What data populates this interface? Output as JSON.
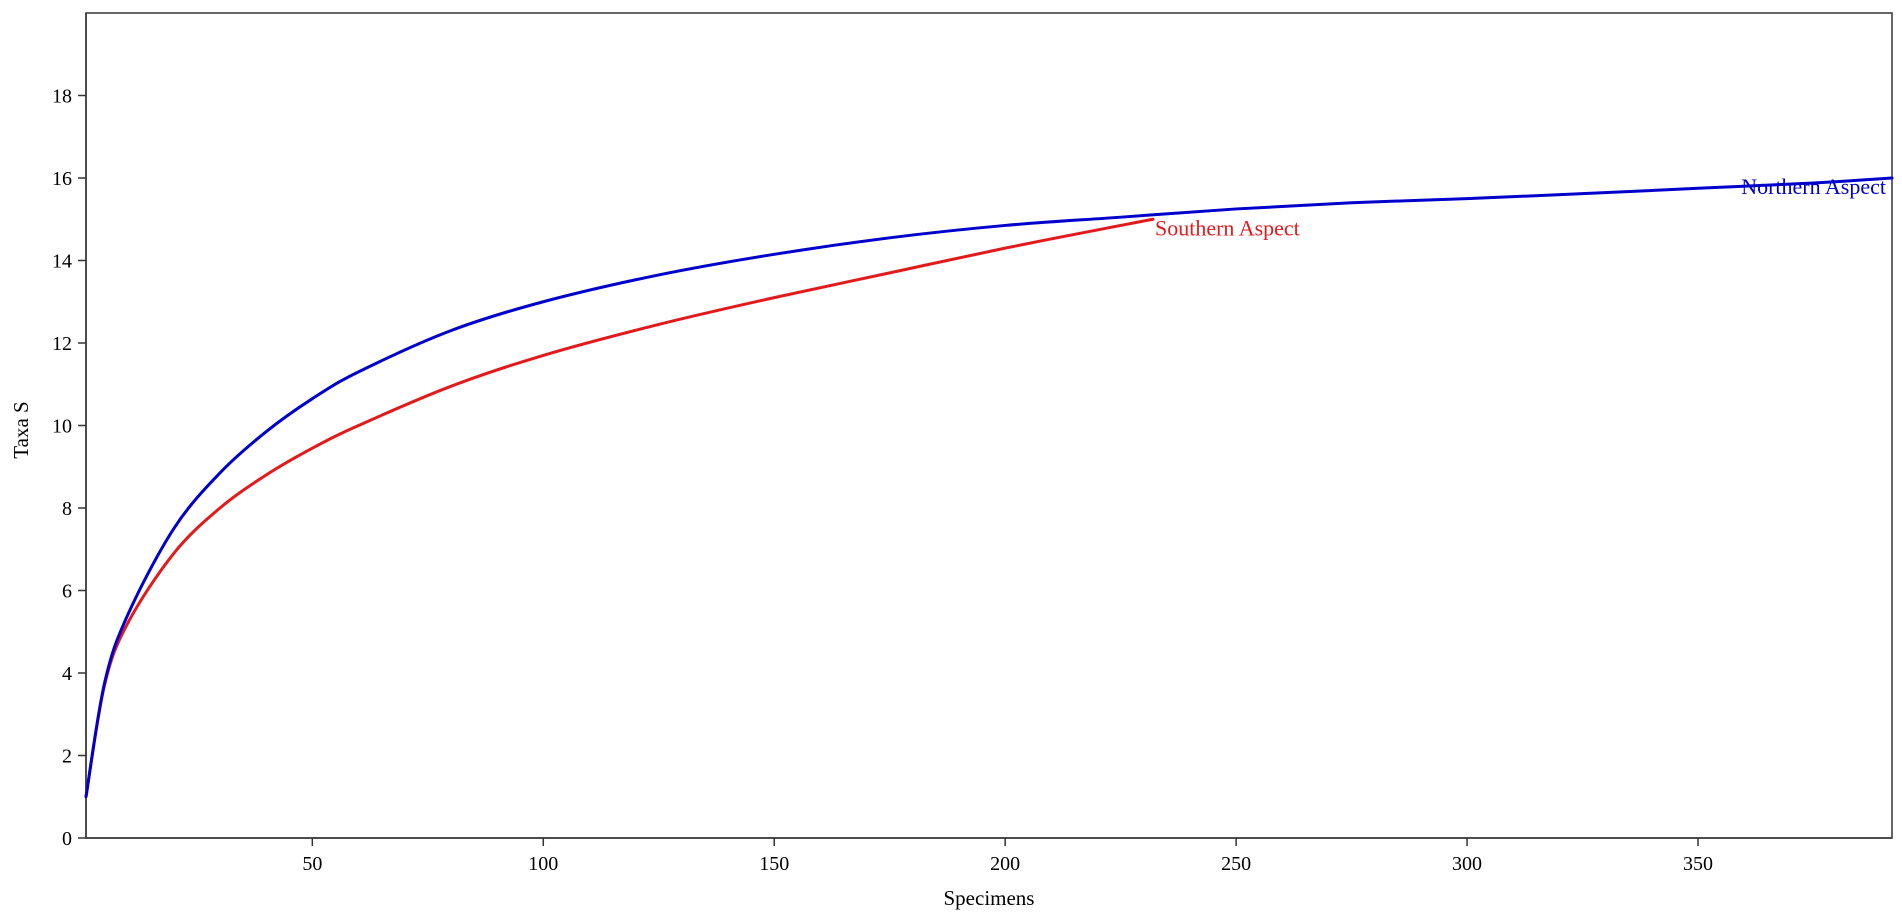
{
  "chart_data": {
    "type": "line",
    "title": "",
    "xlabel": "Specimens",
    "ylabel": "Taxa S",
    "xlim": [
      1,
      392
    ],
    "ylim": [
      0,
      20
    ],
    "x_ticks": [
      50,
      100,
      150,
      200,
      250,
      300,
      350
    ],
    "y_ticks": [
      0,
      2,
      4,
      6,
      8,
      10,
      12,
      14,
      16,
      18
    ],
    "grid": false,
    "legend": "none (series labelled at line ends)",
    "series": [
      {
        "name": "Southern Aspect",
        "color": "#e31a1c",
        "x": [
          1,
          5,
          10,
          20,
          30,
          40,
          50,
          60,
          80,
          100,
          125,
          150,
          175,
          200,
          225,
          232
        ],
        "y": [
          1.0,
          3.7,
          5.2,
          6.9,
          8.0,
          8.8,
          9.45,
          10.0,
          10.95,
          11.7,
          12.45,
          13.1,
          13.7,
          14.3,
          14.85,
          15.0
        ]
      },
      {
        "name": "Northern Aspect",
        "color": "#0000cc",
        "x": [
          1,
          5,
          10,
          20,
          30,
          40,
          50,
          60,
          80,
          100,
          125,
          150,
          175,
          200,
          225,
          250,
          275,
          300,
          325,
          350,
          375,
          392
        ],
        "y": [
          1.0,
          3.75,
          5.4,
          7.5,
          8.85,
          9.85,
          10.65,
          11.3,
          12.3,
          13.0,
          13.65,
          14.15,
          14.55,
          14.85,
          15.05,
          15.25,
          15.4,
          15.5,
          15.62,
          15.75,
          15.88,
          16.0
        ]
      }
    ]
  }
}
